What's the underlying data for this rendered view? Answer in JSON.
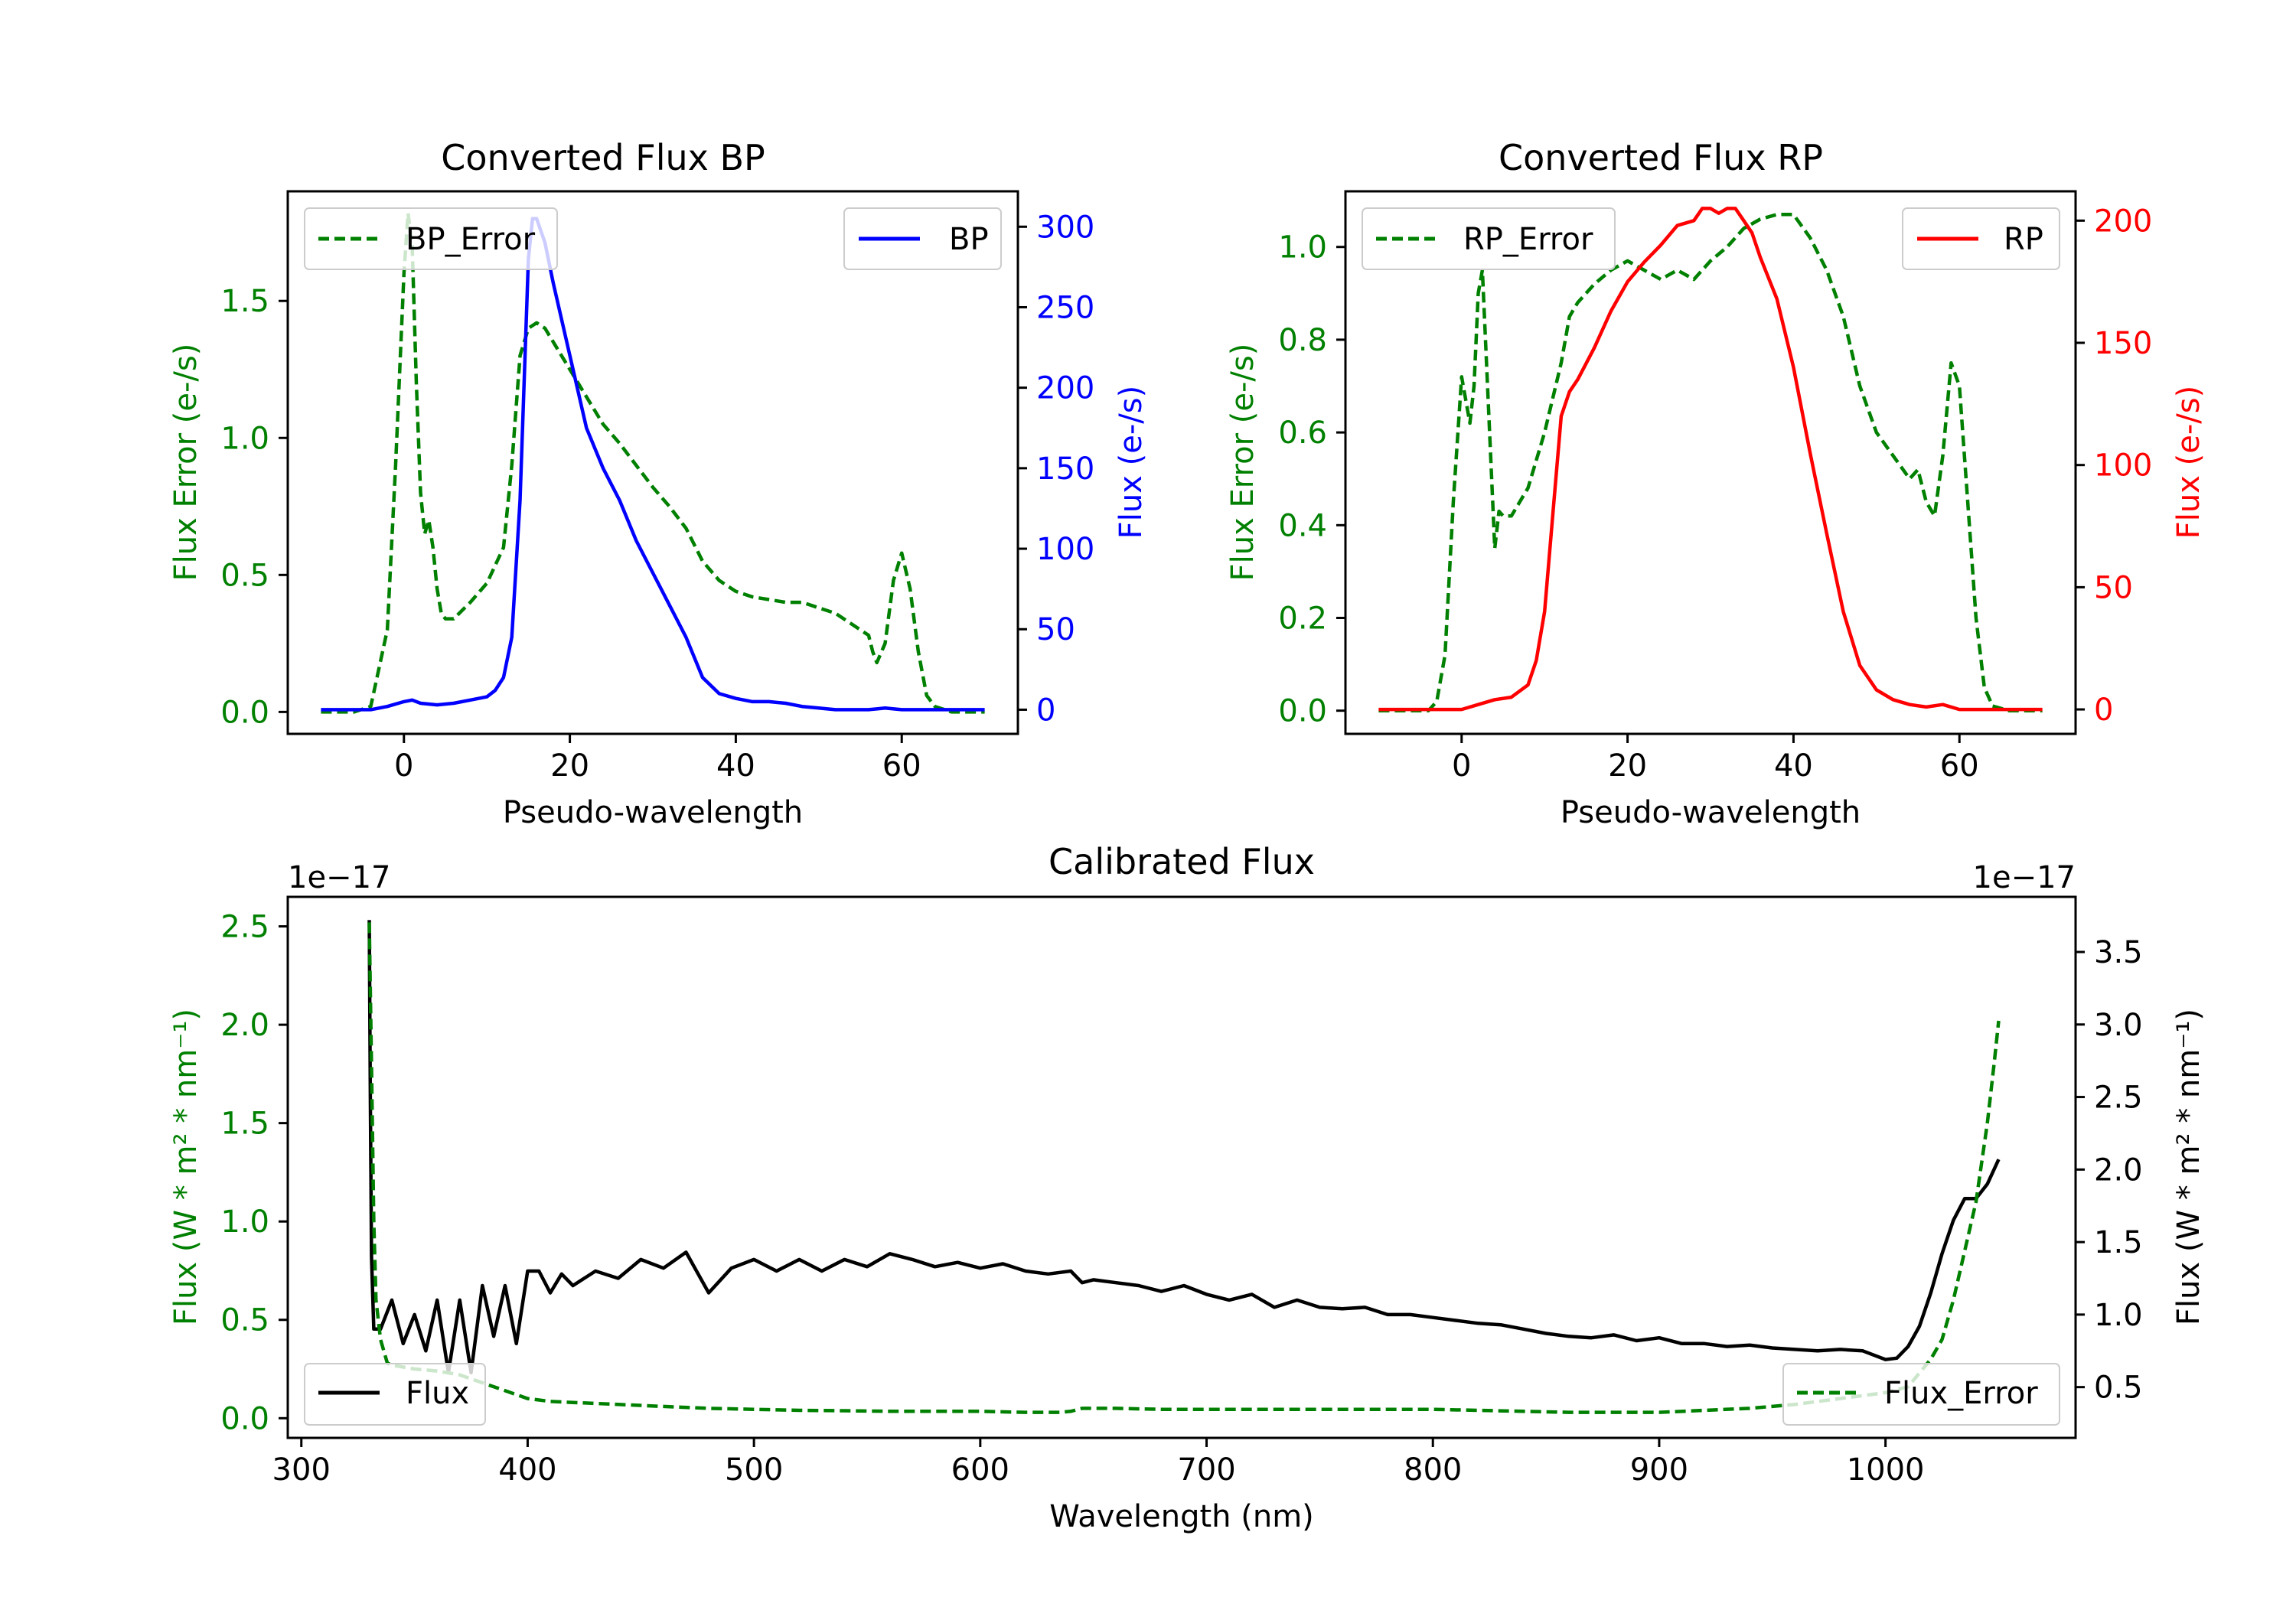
{
  "colors": {
    "green": "#008000",
    "blue": "#0000ff",
    "red": "#ff0000",
    "black": "#000000"
  },
  "chart_data": [
    {
      "id": "bp",
      "type": "line",
      "title": "Converted Flux BP",
      "xlabel": "Pseudo-wavelength",
      "ylabel_left": "Flux Error (e-/s)",
      "ylabel_right": "Flux (e-/s)",
      "xlim": [
        -14,
        74
      ],
      "ylim_left": [
        -0.08,
        1.9
      ],
      "ylim_right": [
        -15,
        322
      ],
      "xticks": [
        "0",
        "20",
        "40",
        "60"
      ],
      "yticks_left": [
        "0.0",
        "0.5",
        "1.0",
        "1.5"
      ],
      "yticks_right": [
        "0",
        "50",
        "100",
        "150",
        "200",
        "250",
        "300"
      ],
      "legend_left": "BP_Error",
      "legend_right": "BP",
      "series": [
        {
          "name": "BP_Error",
          "axis": "left",
          "color": "green",
          "style": "dashed",
          "x": [
            -10,
            -6,
            -4,
            -2,
            -1,
            0,
            0.5,
            1,
            1.5,
            2,
            2.5,
            3,
            3.5,
            4,
            4.5,
            5,
            6,
            8,
            10,
            12,
            13,
            14,
            15,
            16,
            17,
            18,
            20,
            22,
            24,
            26,
            28,
            30,
            32,
            34,
            36,
            38,
            40,
            42,
            44,
            46,
            48,
            50,
            52,
            54,
            56,
            56.5,
            57,
            58,
            59,
            60,
            61,
            62,
            63,
            64,
            66,
            68,
            70
          ],
          "y": [
            0,
            0,
            0.02,
            0.3,
            0.9,
            1.6,
            1.82,
            1.7,
            1.2,
            0.8,
            0.65,
            0.7,
            0.6,
            0.45,
            0.36,
            0.34,
            0.34,
            0.4,
            0.47,
            0.6,
            0.9,
            1.3,
            1.4,
            1.42,
            1.4,
            1.35,
            1.25,
            1.15,
            1.05,
            0.98,
            0.9,
            0.82,
            0.75,
            0.67,
            0.55,
            0.48,
            0.44,
            0.42,
            0.41,
            0.4,
            0.4,
            0.38,
            0.36,
            0.32,
            0.28,
            0.22,
            0.18,
            0.25,
            0.48,
            0.58,
            0.45,
            0.22,
            0.06,
            0.02,
            0,
            0,
            0
          ]
        },
        {
          "name": "BP",
          "axis": "right",
          "color": "blue",
          "style": "solid",
          "x": [
            -10,
            -6,
            -4,
            -2,
            0,
            1,
            2,
            4,
            6,
            8,
            10,
            11,
            12,
            13,
            14,
            15,
            15.5,
            16,
            17,
            18,
            20,
            22,
            24,
            26,
            28,
            30,
            32,
            34,
            36,
            38,
            40,
            42,
            44,
            46,
            48,
            50,
            52,
            54,
            56,
            58,
            60,
            62,
            64,
            66,
            68,
            70
          ],
          "y": [
            0,
            0,
            0,
            2,
            5,
            6,
            4,
            3,
            4,
            6,
            8,
            12,
            20,
            45,
            130,
            280,
            305,
            305,
            290,
            265,
            220,
            175,
            150,
            130,
            105,
            85,
            65,
            45,
            20,
            10,
            7,
            5,
            5,
            4,
            2,
            1,
            0,
            0,
            0,
            1,
            0,
            0,
            0,
            0,
            0,
            0
          ]
        }
      ]
    },
    {
      "id": "rp",
      "type": "line",
      "title": "Converted Flux RP",
      "xlabel": "Pseudo-wavelength",
      "ylabel_left": "Flux Error (e-/s)",
      "ylabel_right": "Flux (e-/s)",
      "xlim": [
        -14,
        74
      ],
      "ylim_left": [
        -0.05,
        1.12
      ],
      "ylim_right": [
        -10,
        212
      ],
      "xticks": [
        "0",
        "20",
        "40",
        "60"
      ],
      "yticks_left": [
        "0.0",
        "0.2",
        "0.4",
        "0.6",
        "0.8",
        "1.0"
      ],
      "yticks_right": [
        "0",
        "50",
        "100",
        "150",
        "200"
      ],
      "legend_left": "RP_Error",
      "legend_right": "RP",
      "series": [
        {
          "name": "RP_Error",
          "axis": "left",
          "color": "green",
          "style": "dashed",
          "x": [
            -10,
            -6,
            -4,
            -3,
            -2,
            -1,
            0,
            1,
            1.5,
            2,
            2.5,
            3,
            3.5,
            4,
            4.5,
            5,
            6,
            8,
            10,
            12,
            13,
            14,
            16,
            18,
            20,
            22,
            24,
            26,
            28,
            30,
            32,
            34,
            36,
            38,
            40,
            42,
            44,
            46,
            48,
            50,
            52,
            54,
            55,
            56,
            57,
            58,
            59,
            60,
            61,
            62,
            63,
            64,
            66,
            68,
            70
          ],
          "y": [
            0,
            0,
            0,
            0.02,
            0.12,
            0.45,
            0.72,
            0.62,
            0.7,
            0.9,
            0.95,
            0.75,
            0.55,
            0.35,
            0.43,
            0.42,
            0.42,
            0.48,
            0.6,
            0.75,
            0.85,
            0.88,
            0.92,
            0.95,
            0.97,
            0.95,
            0.93,
            0.95,
            0.93,
            0.97,
            1.0,
            1.04,
            1.06,
            1.07,
            1.07,
            1.02,
            0.95,
            0.85,
            0.7,
            0.6,
            0.55,
            0.5,
            0.52,
            0.45,
            0.42,
            0.55,
            0.75,
            0.7,
            0.45,
            0.2,
            0.05,
            0.01,
            0,
            0,
            0
          ]
        },
        {
          "name": "RP",
          "axis": "right",
          "color": "red",
          "style": "solid",
          "x": [
            -10,
            -6,
            -4,
            -2,
            0,
            2,
            4,
            6,
            8,
            9,
            10,
            11,
            12,
            13,
            14,
            16,
            18,
            20,
            22,
            24,
            26,
            28,
            29,
            30,
            31,
            32,
            33,
            34,
            35,
            36,
            38,
            40,
            42,
            44,
            46,
            48,
            50,
            52,
            54,
            56,
            58,
            60,
            62,
            64,
            66,
            68,
            70
          ],
          "y": [
            0,
            0,
            0,
            0,
            0,
            2,
            4,
            5,
            10,
            20,
            40,
            80,
            120,
            130,
            135,
            148,
            163,
            175,
            183,
            190,
            198,
            200,
            205,
            205,
            203,
            205,
            205,
            200,
            195,
            185,
            168,
            140,
            105,
            72,
            40,
            18,
            8,
            4,
            2,
            1,
            2,
            0,
            0,
            0,
            0,
            0,
            0
          ]
        }
      ]
    },
    {
      "id": "cal",
      "type": "line",
      "title": "Calibrated Flux",
      "xlabel": "Wavelength (nm)",
      "ylabel_left": "Flux (W * m² * nm⁻¹)",
      "ylabel_right": "Flux (W * m² * nm⁻¹)",
      "offset_left": "1e−17",
      "offset_right": "1e−17",
      "xlim": [
        294,
        1084
      ],
      "ylim_left": [
        -0.1,
        2.65
      ],
      "ylim_right": [
        0.15,
        3.88
      ],
      "xticks": [
        "300",
        "400",
        "500",
        "600",
        "700",
        "800",
        "900",
        "1000"
      ],
      "yticks_left": [
        "0.0",
        "0.5",
        "1.0",
        "1.5",
        "2.0",
        "2.5"
      ],
      "yticks_right": [
        "0.5",
        "1.0",
        "1.5",
        "2.0",
        "2.5",
        "3.0",
        "3.5"
      ],
      "legend_left": "Flux",
      "legend_right": "Flux_Error",
      "series": [
        {
          "name": "Flux",
          "axis": "right",
          "color": "black",
          "style": "solid",
          "x": [
            330,
            330.5,
            331,
            332,
            335,
            340,
            345,
            350,
            355,
            360,
            365,
            370,
            375,
            380,
            385,
            390,
            395,
            400,
            405,
            410,
            415,
            420,
            430,
            440,
            450,
            460,
            470,
            480,
            490,
            500,
            510,
            520,
            530,
            540,
            550,
            560,
            570,
            580,
            590,
            600,
            610,
            620,
            630,
            640,
            645,
            650,
            660,
            670,
            680,
            690,
            700,
            710,
            720,
            730,
            740,
            750,
            760,
            770,
            780,
            790,
            800,
            810,
            820,
            830,
            840,
            850,
            860,
            870,
            880,
            890,
            900,
            910,
            920,
            930,
            940,
            950,
            960,
            970,
            980,
            990,
            1000,
            1005,
            1010,
            1015,
            1020,
            1025,
            1030,
            1035,
            1040,
            1045,
            1050
          ],
          "y": [
            3.72,
            2.5,
            1.4,
            0.9,
            0.9,
            1.1,
            0.8,
            1.0,
            0.75,
            1.1,
            0.6,
            1.1,
            0.6,
            1.2,
            0.85,
            1.2,
            0.8,
            1.3,
            1.3,
            1.15,
            1.28,
            1.2,
            1.3,
            1.25,
            1.38,
            1.32,
            1.43,
            1.15,
            1.32,
            1.38,
            1.3,
            1.38,
            1.3,
            1.38,
            1.33,
            1.42,
            1.38,
            1.33,
            1.36,
            1.32,
            1.35,
            1.3,
            1.28,
            1.3,
            1.22,
            1.24,
            1.22,
            1.2,
            1.16,
            1.2,
            1.14,
            1.1,
            1.14,
            1.05,
            1.1,
            1.05,
            1.04,
            1.05,
            1.0,
            1.0,
            0.98,
            0.96,
            0.94,
            0.93,
            0.9,
            0.87,
            0.85,
            0.84,
            0.86,
            0.82,
            0.84,
            0.8,
            0.8,
            0.78,
            0.79,
            0.77,
            0.76,
            0.75,
            0.76,
            0.75,
            0.69,
            0.7,
            0.78,
            0.92,
            1.15,
            1.42,
            1.65,
            1.8,
            1.8,
            1.9,
            2.07
          ]
        },
        {
          "name": "Flux_Error",
          "axis": "left",
          "color": "green",
          "style": "dashed",
          "x": [
            330,
            331,
            332,
            333,
            335,
            338,
            340,
            345,
            350,
            360,
            370,
            380,
            390,
            400,
            410,
            420,
            440,
            460,
            480,
            500,
            520,
            540,
            560,
            580,
            600,
            620,
            635,
            640,
            645,
            660,
            680,
            700,
            720,
            740,
            760,
            780,
            800,
            820,
            840,
            860,
            880,
            900,
            920,
            940,
            960,
            980,
            1000,
            1010,
            1020,
            1025,
            1030,
            1035,
            1040,
            1045,
            1048,
            1050
          ],
          "y": [
            2.52,
            1.8,
            1.0,
            0.6,
            0.4,
            0.28,
            0.27,
            0.26,
            0.25,
            0.24,
            0.22,
            0.18,
            0.14,
            0.1,
            0.085,
            0.08,
            0.07,
            0.06,
            0.05,
            0.045,
            0.04,
            0.038,
            0.035,
            0.035,
            0.035,
            0.03,
            0.03,
            0.035,
            0.05,
            0.05,
            0.045,
            0.045,
            0.045,
            0.045,
            0.045,
            0.045,
            0.045,
            0.04,
            0.035,
            0.03,
            0.03,
            0.03,
            0.04,
            0.05,
            0.07,
            0.1,
            0.13,
            0.16,
            0.3,
            0.4,
            0.6,
            0.85,
            1.1,
            1.5,
            1.8,
            2.02
          ]
        }
      ]
    }
  ]
}
